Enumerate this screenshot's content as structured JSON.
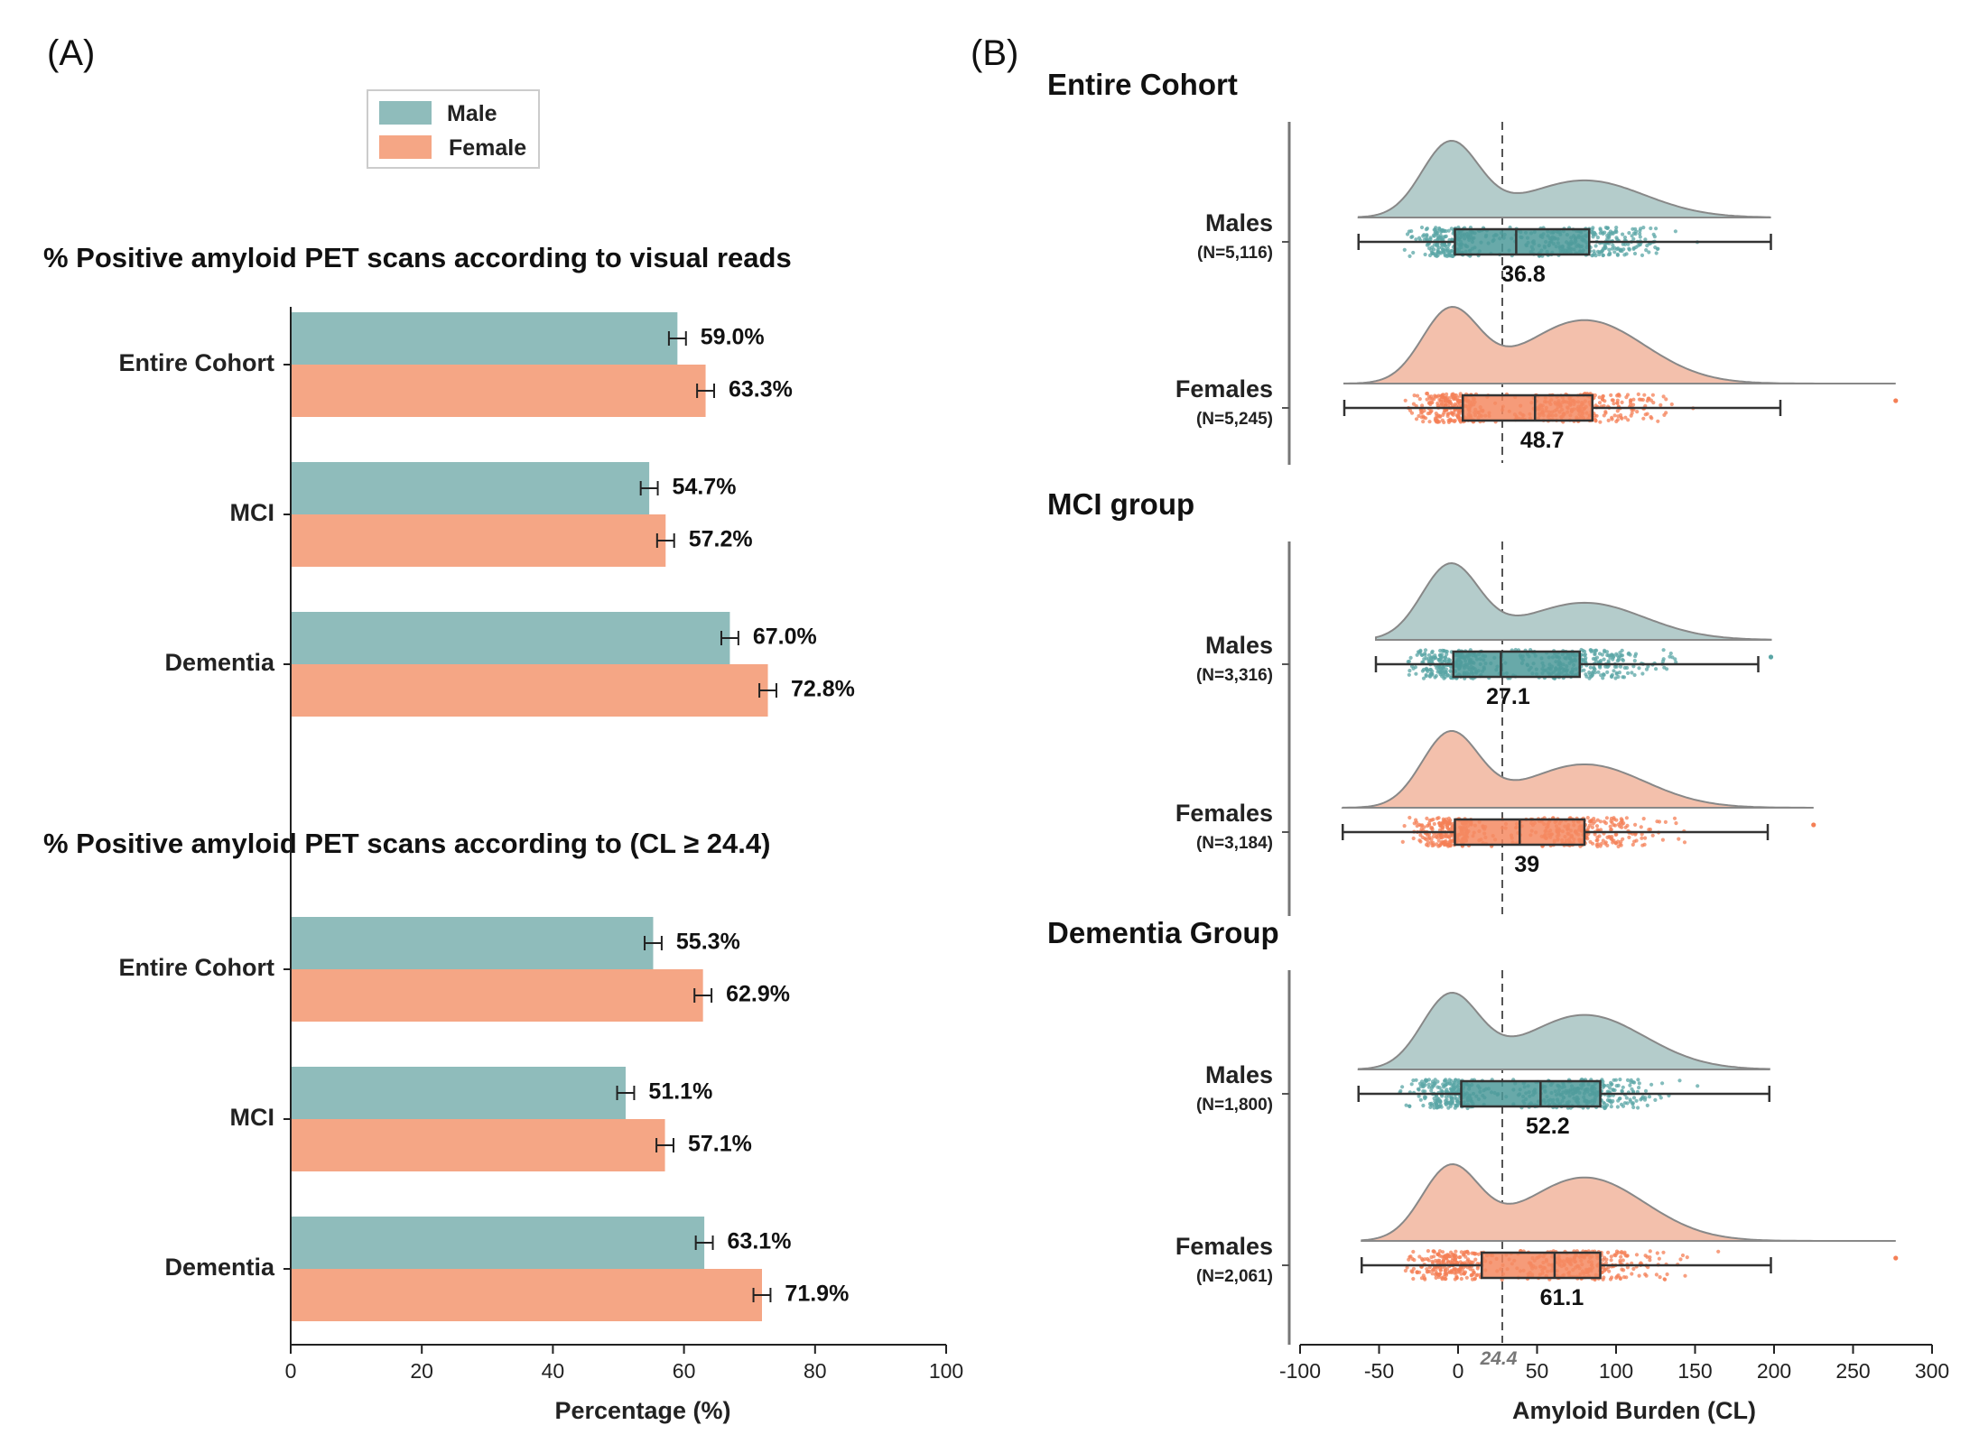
{
  "panel_a": {
    "label": "(A)",
    "legend": [
      {
        "name": "Male",
        "color": "#8fbcbb"
      },
      {
        "name": "Female",
        "color": "#f5a685"
      }
    ],
    "xlabel": "Percentage (%)",
    "xticks": [
      "0",
      "20",
      "40",
      "60",
      "80",
      "100"
    ]
  },
  "panel_b": {
    "label": "(B)",
    "xlabel": "Amyloid Burden (CL)",
    "xticks": [
      "-100",
      "-50",
      "0",
      "50",
      "100",
      "150",
      "200",
      "250",
      "300"
    ],
    "threshold_label": "24.4"
  },
  "colors": {
    "male_bar": "#8fbcbb",
    "female_bar": "#f5a685",
    "male_violin": "#b4cccb",
    "female_violin": "#f3c0ac",
    "male_point": "#5aa5a5",
    "female_point": "#f47f55",
    "male_box": "#4d9a9a",
    "female_box": "#f58a62"
  },
  "chart_data": [
    {
      "type": "bar",
      "title": "% Positive amyloid PET scans according to visual reads",
      "categories": [
        "Entire Cohort",
        "MCI",
        "Dementia"
      ],
      "series": [
        {
          "name": "Male",
          "values": [
            59.0,
            54.7,
            67.0
          ],
          "labels": [
            "59.0%",
            "54.7%",
            "67.0%"
          ]
        },
        {
          "name": "Female",
          "values": [
            63.3,
            57.2,
            72.8
          ],
          "labels": [
            "63.3%",
            "57.2%",
            "72.8%"
          ]
        }
      ],
      "error": 1.3,
      "xlim": [
        0,
        100
      ]
    },
    {
      "type": "bar",
      "title": "% Positive amyloid PET scans according to (CL ≥ 24.4)",
      "categories": [
        "Entire Cohort",
        "MCI",
        "Dementia"
      ],
      "series": [
        {
          "name": "Male",
          "values": [
            55.3,
            51.1,
            63.1
          ],
          "labels": [
            "55.3%",
            "51.1%",
            "63.1%"
          ]
        },
        {
          "name": "Female",
          "values": [
            62.9,
            57.1,
            71.9
          ],
          "labels": [
            "62.9%",
            "57.1%",
            "71.9%"
          ]
        }
      ],
      "error": 1.3,
      "xlim": [
        0,
        100
      ]
    },
    {
      "type": "raincloud",
      "xlim": [
        -100,
        300
      ],
      "threshold": 24.4,
      "groups": [
        {
          "title": "Entire Cohort",
          "rows": [
            {
              "sex": "male",
              "label": "Males",
              "n": "(N=5,116)",
              "median": 36.8,
              "median_label": "36.8",
              "q1": -2,
              "q3": 83,
              "whisker_low": -63,
              "whisker_high": 198,
              "max": 198
            },
            {
              "sex": "female",
              "label": "Females",
              "n": "(N=5,245)",
              "median": 48.7,
              "median_label": "48.7",
              "q1": 3,
              "q3": 85,
              "whisker_low": -72,
              "whisker_high": 204,
              "max": 277
            }
          ]
        },
        {
          "title": "MCI group",
          "rows": [
            {
              "sex": "male",
              "label": "Males",
              "n": "(N=3,316)",
              "median": 27.1,
              "median_label": "27.1",
              "q1": -3,
              "q3": 77,
              "whisker_low": -52,
              "whisker_high": 190,
              "max": 198
            },
            {
              "sex": "female",
              "label": "Females",
              "n": "(N=3,184)",
              "median": 39,
              "median_label": "39",
              "q1": -2,
              "q3": 80,
              "whisker_low": -73,
              "whisker_high": 196,
              "max": 225
            }
          ]
        },
        {
          "title": "Dementia Group",
          "rows": [
            {
              "sex": "male",
              "label": "Males",
              "n": "(N=1,800)",
              "median": 52.2,
              "median_label": "52.2",
              "q1": 2,
              "q3": 90,
              "whisker_low": -63,
              "whisker_high": 197,
              "max": 197
            },
            {
              "sex": "female",
              "label": "Females",
              "n": "(N=2,061)",
              "median": 61.1,
              "median_label": "61.1",
              "q1": 15,
              "q3": 90,
              "whisker_low": -61,
              "whisker_high": 198,
              "max": 277
            }
          ]
        }
      ]
    }
  ]
}
